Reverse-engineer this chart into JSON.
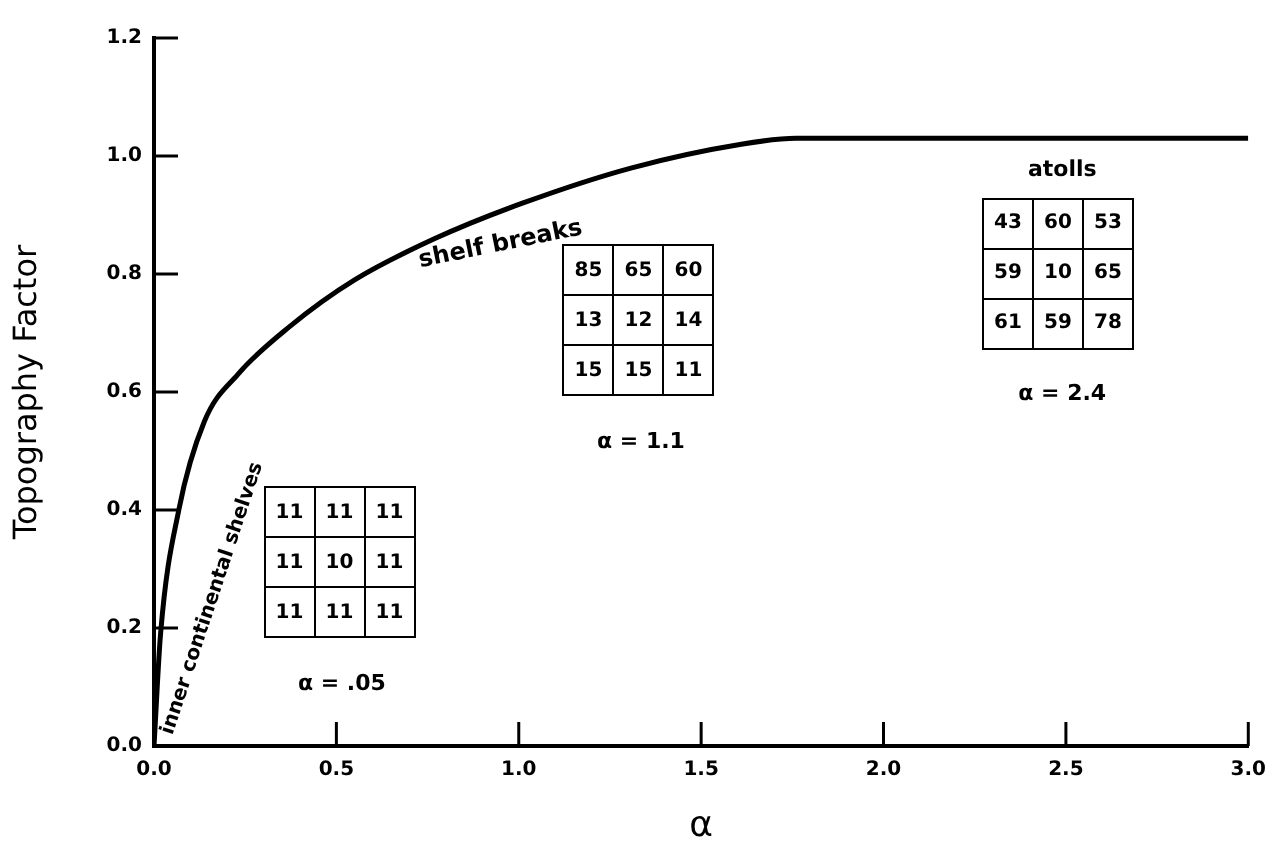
{
  "chart_data": {
    "type": "line",
    "xlabel": "α",
    "ylabel": "Topography Factor",
    "x": [
      0,
      0.018,
      0.068,
      0.138,
      0.23,
      0.37,
      0.55,
      0.77,
      1.01,
      1.31,
      1.61,
      1.76,
      3.0
    ],
    "series": [
      {
        "color": "#000000",
        "values": [
          0,
          0.19,
          0.4,
          0.55,
          0.63,
          0.71,
          0.79,
          0.86,
          0.92,
          0.98,
          1.02,
          1.03,
          1.03
        ]
      }
    ],
    "xlim": [
      0,
      3
    ],
    "xticks": [
      {
        "value": 0,
        "label": "0.0"
      },
      {
        "value": 0.5,
        "label": "0.5"
      },
      {
        "value": 1,
        "label": "1.0"
      },
      {
        "value": 1.5,
        "label": "1.5"
      },
      {
        "value": 2,
        "label": "2.0"
      },
      {
        "value": 2.5,
        "label": "2.5"
      },
      {
        "value": 3,
        "label": "3.0"
      }
    ],
    "ylim": [
      0,
      1.2
    ],
    "yticks": [
      {
        "value": 0,
        "label": "0.0"
      },
      {
        "value": 0.2,
        "label": "0.2"
      },
      {
        "value": 0.4,
        "label": "0.4"
      },
      {
        "value": 0.6,
        "label": "0.6"
      },
      {
        "value": 0.8,
        "label": "0.8"
      },
      {
        "value": 1,
        "label": "1.0"
      },
      {
        "value": 1.2,
        "label": "1.2"
      }
    ],
    "grid": false,
    "legend": false,
    "marker": "none",
    "line_style": "solid",
    "annotations": [
      "inner continental shelves",
      "shelf breaks",
      "11 11 11\n11 10 11\n11 11 11",
      "α = .05",
      "85 65 60\n13 12 14\n15 15 11",
      "α = 1.1",
      "atolls",
      "43 60 53\n59 10 65\n61 59 78",
      "α = 2.4"
    ]
  }
}
